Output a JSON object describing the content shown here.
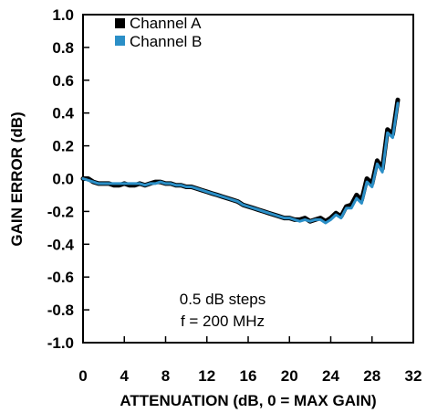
{
  "chart_data": {
    "type": "line",
    "xlabel": "ATTENUATION (dB, 0 = MAX GAIN)",
    "ylabel": "GAIN ERROR (dB)",
    "xlim": [
      0,
      32
    ],
    "ylim": [
      -1.0,
      1.0
    ],
    "x_ticks": [
      "0",
      "4",
      "8",
      "12",
      "16",
      "20",
      "24",
      "28",
      "32"
    ],
    "y_ticks": [
      "1.0",
      "0.8",
      "0.6",
      "0.4",
      "0.2",
      "0.0",
      "-0.2",
      "-0.4",
      "-0.6",
      "-0.8",
      "-1.0"
    ],
    "grid": false,
    "legend_position": "top-left",
    "annotation": [
      "0.5 dB steps",
      "f = 200 MHz"
    ],
    "series": [
      {
        "name": "Channel A",
        "color": "#000000",
        "x": [
          0,
          0.5,
          1,
          1.5,
          2,
          2.5,
          3,
          3.5,
          4,
          4.5,
          5,
          5.5,
          6,
          6.5,
          7,
          7.5,
          8,
          8.5,
          9,
          9.5,
          10,
          10.5,
          11,
          11.5,
          12,
          12.5,
          13,
          13.5,
          14,
          14.5,
          15,
          15.5,
          16,
          16.5,
          17,
          17.5,
          18,
          18.5,
          19,
          19.5,
          20,
          20.5,
          21,
          21.5,
          22,
          22.5,
          23,
          23.5,
          24,
          24.5,
          25,
          25.5,
          26,
          26.5,
          27,
          27.5,
          28,
          28.5,
          29,
          29.5,
          30,
          30.5
        ],
        "y": [
          0.0,
          0.0,
          -0.02,
          -0.03,
          -0.03,
          -0.03,
          -0.04,
          -0.04,
          -0.03,
          -0.04,
          -0.04,
          -0.03,
          -0.04,
          -0.03,
          -0.02,
          -0.02,
          -0.03,
          -0.03,
          -0.04,
          -0.04,
          -0.05,
          -0.05,
          -0.06,
          -0.07,
          -0.08,
          -0.09,
          -0.1,
          -0.11,
          -0.12,
          -0.13,
          -0.14,
          -0.16,
          -0.17,
          -0.18,
          -0.19,
          -0.2,
          -0.21,
          -0.22,
          -0.23,
          -0.24,
          -0.24,
          -0.25,
          -0.25,
          -0.24,
          -0.26,
          -0.25,
          -0.24,
          -0.26,
          -0.24,
          -0.21,
          -0.23,
          -0.17,
          -0.16,
          -0.1,
          -0.13,
          0.0,
          -0.03,
          0.11,
          0.06,
          0.3,
          0.27,
          0.48
        ]
      },
      {
        "name": "Channel B",
        "color": "#2b8fc7",
        "x": [
          0,
          0.5,
          1,
          1.5,
          2,
          2.5,
          3,
          3.5,
          4,
          4.5,
          5,
          5.5,
          6,
          6.5,
          7,
          7.5,
          8,
          8.5,
          9,
          9.5,
          10,
          10.5,
          11,
          11.5,
          12,
          12.5,
          13,
          13.5,
          14,
          14.5,
          15,
          15.5,
          16,
          16.5,
          17,
          17.5,
          18,
          18.5,
          19,
          19.5,
          20,
          20.5,
          21,
          21.5,
          22,
          22.5,
          23,
          23.5,
          24,
          24.5,
          25,
          25.5,
          26,
          26.5,
          27,
          27.5,
          28,
          28.5,
          29,
          29.5,
          30,
          30.5
        ],
        "y": [
          0.0,
          -0.01,
          -0.02,
          -0.03,
          -0.03,
          -0.03,
          -0.03,
          -0.03,
          -0.03,
          -0.03,
          -0.03,
          -0.03,
          -0.04,
          -0.03,
          -0.03,
          -0.02,
          -0.03,
          -0.03,
          -0.04,
          -0.04,
          -0.05,
          -0.05,
          -0.06,
          -0.07,
          -0.08,
          -0.09,
          -0.1,
          -0.11,
          -0.12,
          -0.13,
          -0.14,
          -0.16,
          -0.17,
          -0.18,
          -0.19,
          -0.2,
          -0.21,
          -0.22,
          -0.23,
          -0.24,
          -0.24,
          -0.25,
          -0.26,
          -0.25,
          -0.26,
          -0.25,
          -0.25,
          -0.27,
          -0.25,
          -0.22,
          -0.24,
          -0.18,
          -0.18,
          -0.12,
          -0.15,
          -0.02,
          -0.05,
          0.09,
          0.04,
          0.28,
          0.25,
          0.46
        ]
      }
    ]
  }
}
